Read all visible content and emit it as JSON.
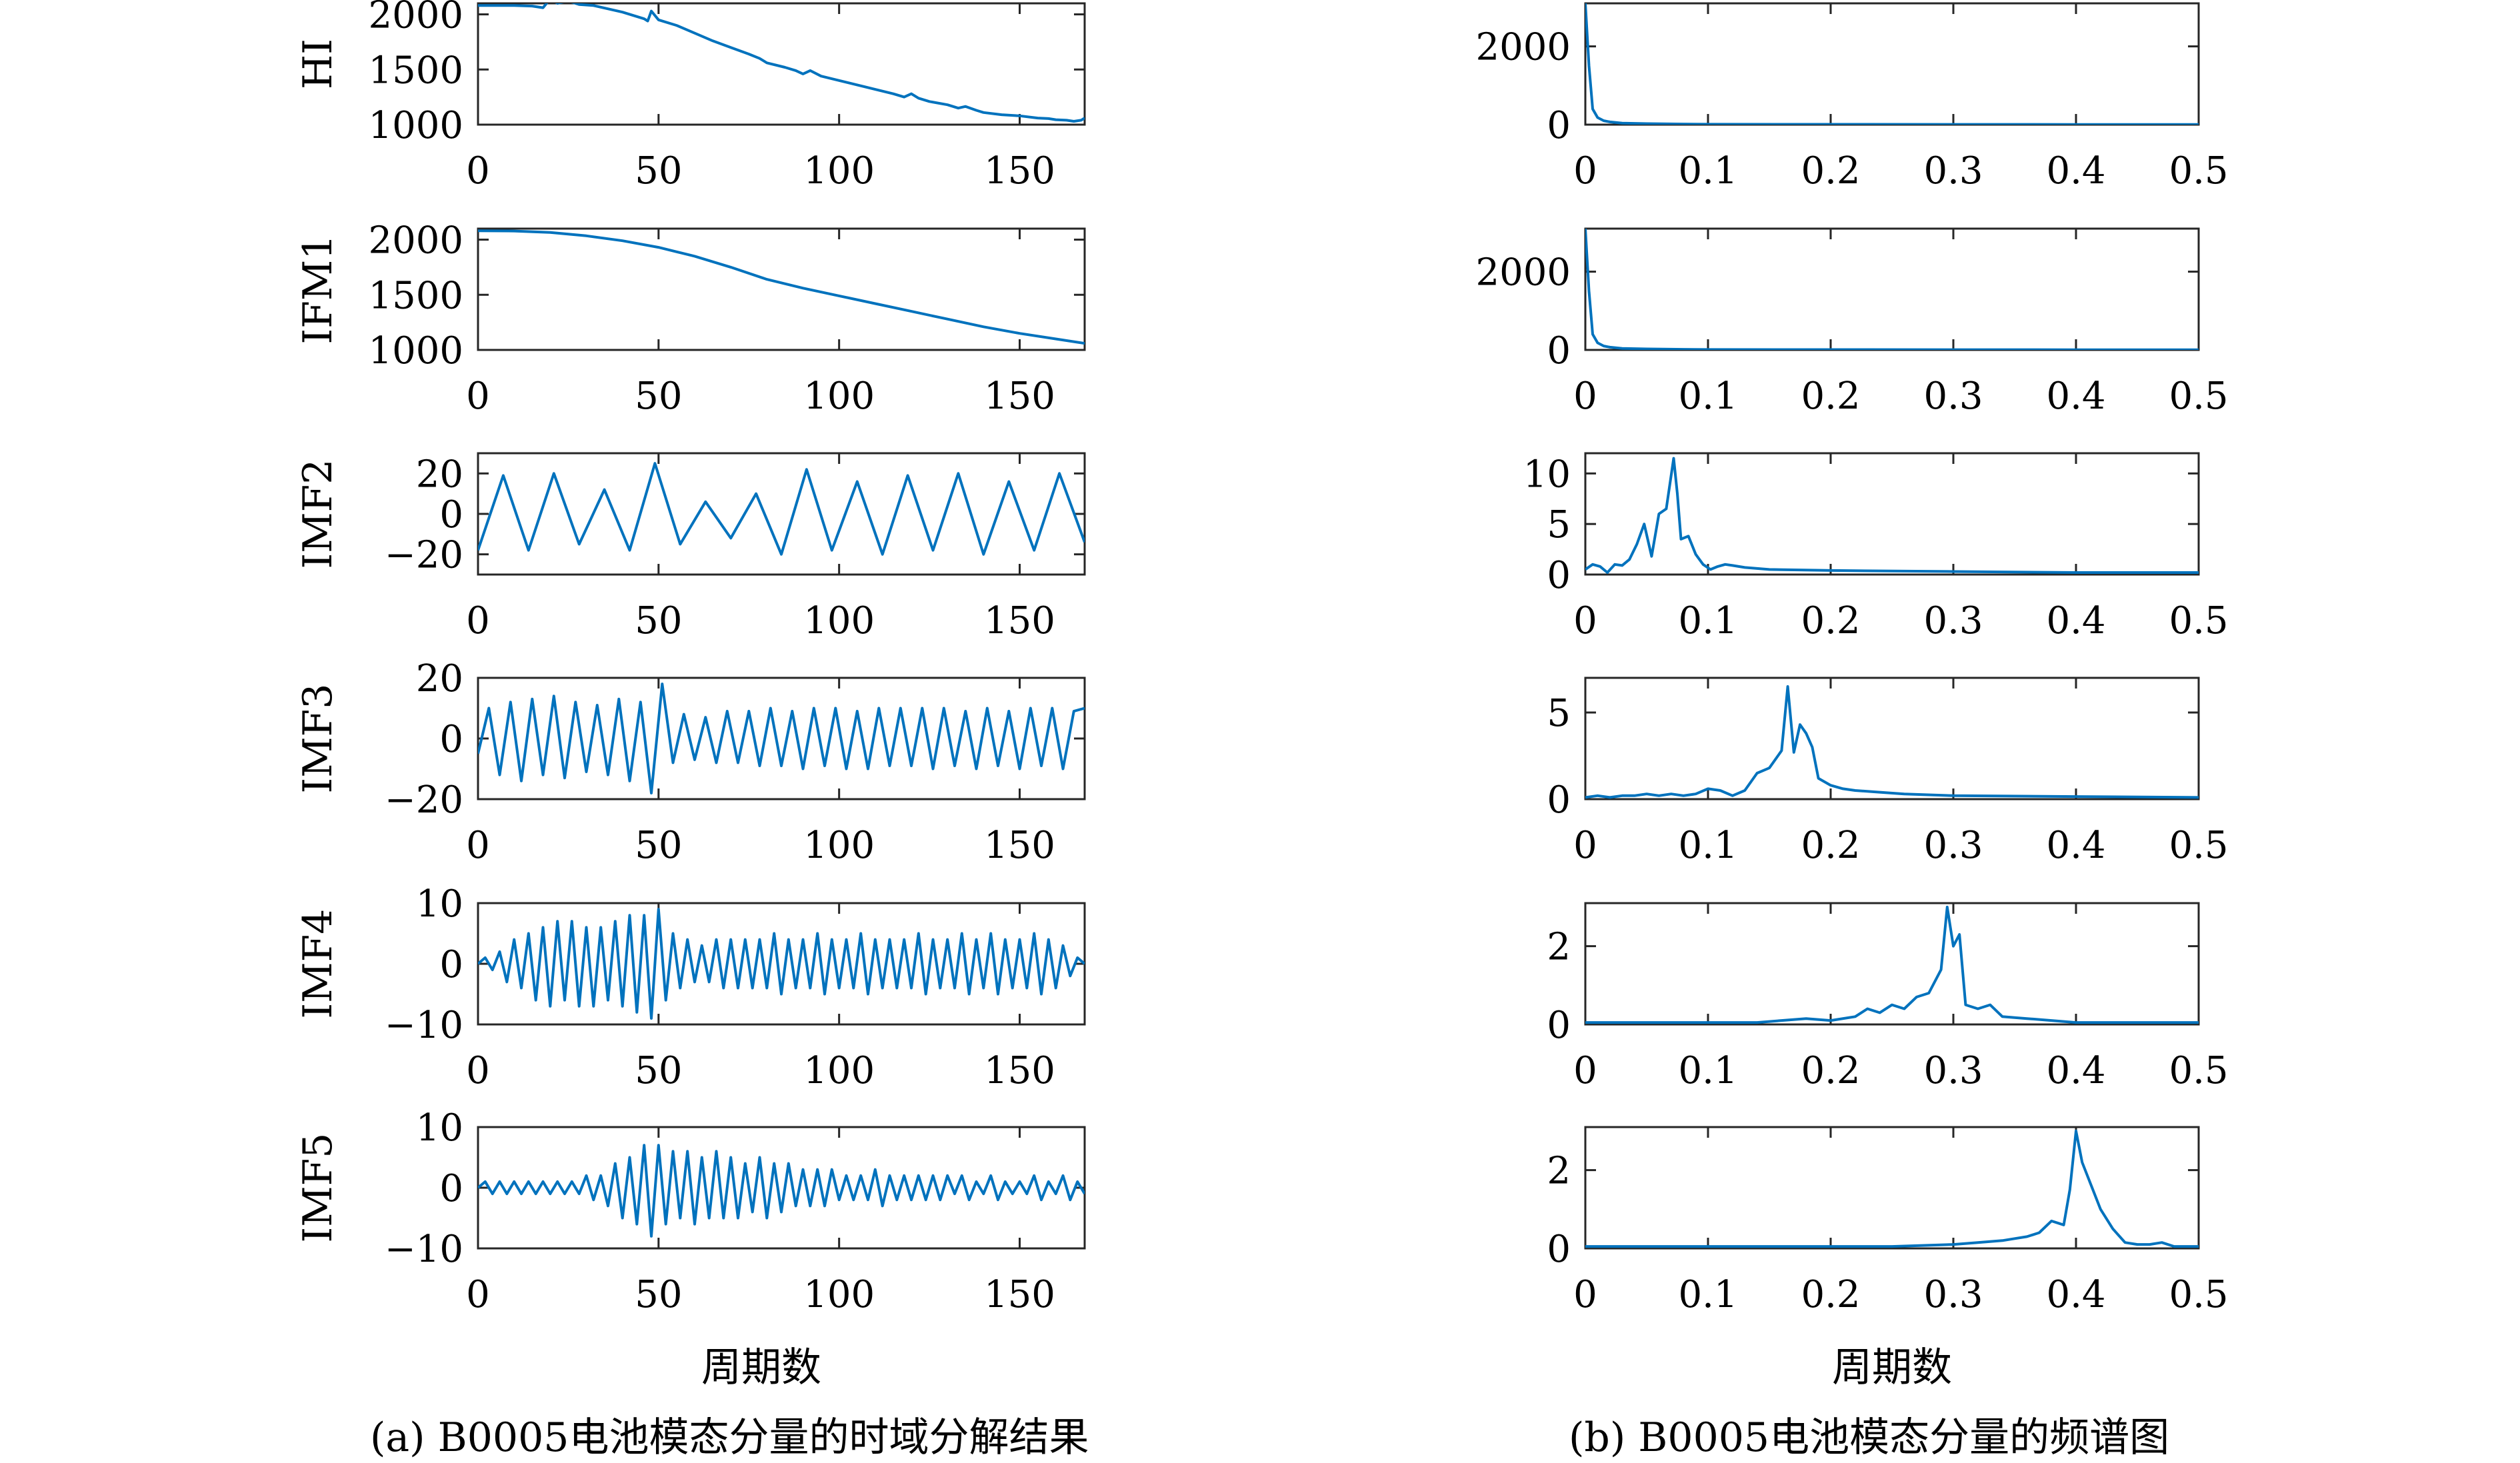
{
  "figure": {
    "left_xlabel": "周期数",
    "right_xlabel": "周期数",
    "caption_a": "(a) B0005电池模态分量的时域分解结果",
    "caption_b": "(b) B0005电池模态分量的频谱图"
  },
  "chart_data": [
    {
      "type": "line",
      "panel": "time",
      "ylabel": "HI",
      "xlim": [
        0,
        168
      ],
      "ylim": [
        1000,
        2100
      ],
      "xticks": [
        "0",
        "50",
        "100",
        "150"
      ],
      "yticks": [
        "1000",
        "1500",
        "2000"
      ],
      "color": "#0072BD",
      "x": [
        0,
        10,
        15,
        18,
        20,
        22,
        25,
        28,
        32,
        40,
        46,
        47,
        48,
        50,
        55,
        60,
        65,
        70,
        75,
        78,
        80,
        85,
        88,
        90,
        92,
        95,
        100,
        105,
        110,
        115,
        118,
        120,
        122,
        125,
        130,
        133,
        135,
        138,
        140,
        145,
        150,
        155,
        158,
        160,
        163,
        165,
        167,
        168
      ],
      "y": [
        2080,
        2080,
        2075,
        2060,
        2140,
        2100,
        2120,
        2090,
        2080,
        2020,
        1960,
        1940,
        2030,
        1950,
        1900,
        1830,
        1760,
        1700,
        1640,
        1600,
        1560,
        1520,
        1490,
        1460,
        1490,
        1440,
        1400,
        1360,
        1320,
        1280,
        1250,
        1280,
        1240,
        1210,
        1180,
        1150,
        1165,
        1130,
        1110,
        1090,
        1080,
        1060,
        1055,
        1045,
        1040,
        1030,
        1040,
        1060
      ]
    },
    {
      "type": "line",
      "panel": "time",
      "ylabel": "IFM1",
      "xlim": [
        0,
        168
      ],
      "ylim": [
        1000,
        2100
      ],
      "xticks": [
        "0",
        "50",
        "100",
        "150"
      ],
      "yticks": [
        "1000",
        "1500",
        "2000"
      ],
      "color": "#0072BD",
      "x": [
        0,
        10,
        20,
        30,
        40,
        50,
        60,
        70,
        80,
        90,
        100,
        110,
        120,
        130,
        140,
        150,
        160,
        168
      ],
      "y": [
        2080,
        2078,
        2065,
        2035,
        1990,
        1930,
        1850,
        1750,
        1640,
        1560,
        1490,
        1420,
        1350,
        1280,
        1210,
        1150,
        1100,
        1060
      ]
    },
    {
      "type": "line",
      "panel": "time",
      "ylabel": "IMF2",
      "xlim": [
        0,
        168
      ],
      "ylim": [
        -30,
        30
      ],
      "xticks": [
        "0",
        "50",
        "100",
        "150"
      ],
      "yticks": [
        "−20",
        "0",
        "20"
      ],
      "color": "#0072BD",
      "x": [
        0,
        7,
        14,
        21,
        28,
        35,
        42,
        49,
        56,
        63,
        70,
        77,
        84,
        91,
        98,
        105,
        112,
        119,
        126,
        133,
        140,
        147,
        154,
        161,
        168
      ],
      "y": [
        -18,
        19,
        -18,
        20,
        -15,
        12,
        -18,
        25,
        -15,
        6,
        -12,
        10,
        -20,
        22,
        -18,
        16,
        -20,
        19,
        -18,
        20,
        -20,
        16,
        -18,
        20,
        -14
      ]
    },
    {
      "type": "line",
      "panel": "time",
      "ylabel": "IMF3",
      "xlim": [
        0,
        168
      ],
      "ylim": [
        -20,
        20
      ],
      "xticks": [
        "0",
        "50",
        "100",
        "150"
      ],
      "yticks": [
        "−20",
        "0",
        "20"
      ],
      "color": "#0072BD",
      "x": [
        0,
        3,
        6,
        9,
        12,
        15,
        18,
        21,
        24,
        27,
        30,
        33,
        36,
        39,
        42,
        45,
        48,
        51,
        54,
        57,
        60,
        63,
        66,
        69,
        72,
        75,
        78,
        81,
        84,
        87,
        90,
        93,
        96,
        99,
        102,
        105,
        108,
        111,
        114,
        117,
        120,
        123,
        126,
        129,
        132,
        135,
        138,
        141,
        144,
        147,
        150,
        153,
        156,
        159,
        162,
        165,
        168
      ],
      "y": [
        -5,
        10,
        -12,
        12,
        -14,
        13,
        -12,
        14,
        -13,
        12,
        -11,
        11,
        -12,
        13,
        -14,
        12,
        -18,
        18,
        -8,
        8,
        -7,
        7,
        -8,
        9,
        -8,
        9,
        -9,
        10,
        -9,
        9,
        -10,
        10,
        -9,
        10,
        -10,
        9,
        -10,
        10,
        -9,
        10,
        -9,
        10,
        -10,
        10,
        -9,
        9,
        -10,
        10,
        -9,
        9,
        -10,
        10,
        -9,
        10,
        -10,
        9,
        10
      ]
    },
    {
      "type": "line",
      "panel": "time",
      "ylabel": "IMF4",
      "xlim": [
        0,
        168
      ],
      "ylim": [
        -10,
        10
      ],
      "xticks": [
        "0",
        "50",
        "100",
        "150"
      ],
      "yticks": [
        "−10",
        "0",
        "10"
      ],
      "color": "#0072BD",
      "x": [
        0,
        2,
        4,
        6,
        8,
        10,
        12,
        14,
        16,
        18,
        20,
        22,
        24,
        26,
        28,
        30,
        32,
        34,
        36,
        38,
        40,
        42,
        44,
        46,
        48,
        50,
        52,
        54,
        56,
        58,
        60,
        62,
        64,
        66,
        68,
        70,
        72,
        74,
        76,
        78,
        80,
        82,
        84,
        86,
        88,
        90,
        92,
        94,
        96,
        98,
        100,
        102,
        104,
        106,
        108,
        110,
        112,
        114,
        116,
        118,
        120,
        122,
        124,
        126,
        128,
        130,
        132,
        134,
        136,
        138,
        140,
        142,
        144,
        146,
        148,
        150,
        152,
        154,
        156,
        158,
        160,
        162,
        164,
        166,
        168
      ],
      "y": [
        0,
        1,
        -1,
        2,
        -3,
        4,
        -4,
        5,
        -6,
        6,
        -7,
        7,
        -6,
        7,
        -7,
        6,
        -7,
        6,
        -6,
        7,
        -7,
        8,
        -8,
        8,
        -9,
        9,
        -6,
        5,
        -4,
        4,
        -3,
        3,
        -3,
        4,
        -4,
        4,
        -4,
        4,
        -4,
        4,
        -4,
        5,
        -5,
        4,
        -4,
        4,
        -4,
        5,
        -5,
        4,
        -4,
        4,
        -4,
        5,
        -5,
        4,
        -4,
        4,
        -4,
        4,
        -4,
        5,
        -5,
        4,
        -4,
        4,
        -4,
        5,
        -5,
        4,
        -4,
        5,
        -5,
        4,
        -4,
        4,
        -4,
        5,
        -5,
        4,
        -4,
        3,
        -2,
        1,
        0
      ]
    },
    {
      "type": "line",
      "panel": "time",
      "ylabel": "IMF5",
      "xlim": [
        0,
        168
      ],
      "ylim": [
        -10,
        10
      ],
      "xticks": [
        "0",
        "50",
        "100",
        "150"
      ],
      "yticks": [
        "−10",
        "0",
        "10"
      ],
      "color": "#0072BD",
      "x": [
        0,
        2,
        4,
        6,
        8,
        10,
        12,
        14,
        16,
        18,
        20,
        22,
        24,
        26,
        28,
        30,
        32,
        34,
        36,
        38,
        40,
        42,
        44,
        46,
        48,
        50,
        52,
        54,
        56,
        58,
        60,
        62,
        64,
        66,
        68,
        70,
        72,
        74,
        76,
        78,
        80,
        82,
        84,
        86,
        88,
        90,
        92,
        94,
        96,
        98,
        100,
        102,
        104,
        106,
        108,
        110,
        112,
        114,
        116,
        118,
        120,
        122,
        124,
        126,
        128,
        130,
        132,
        134,
        136,
        138,
        140,
        142,
        144,
        146,
        148,
        150,
        152,
        154,
        156,
        158,
        160,
        162,
        164,
        166,
        168
      ],
      "y": [
        0,
        1,
        -1,
        1,
        -1,
        1,
        -1,
        1,
        -1,
        1,
        -1,
        1,
        -1,
        1,
        -1,
        2,
        -2,
        2,
        -3,
        4,
        -5,
        5,
        -6,
        7,
        -8,
        7,
        -6,
        6,
        -5,
        6,
        -6,
        5,
        -5,
        6,
        -5,
        5,
        -5,
        4,
        -4,
        5,
        -5,
        4,
        -4,
        4,
        -3,
        3,
        -3,
        3,
        -3,
        3,
        -2,
        2,
        -2,
        2,
        -2,
        3,
        -3,
        2,
        -2,
        2,
        -2,
        2,
        -2,
        2,
        -2,
        2,
        -1,
        2,
        -2,
        1,
        -1,
        2,
        -2,
        1,
        -1,
        1,
        -1,
        2,
        -2,
        1,
        -1,
        2,
        -2,
        1,
        -1
      ]
    },
    {
      "type": "line",
      "panel": "spectrum",
      "ylabel": "",
      "xlim": [
        0,
        0.5
      ],
      "ylim": [
        0,
        3100
      ],
      "xticks": [
        "0",
        "0.1",
        "0.2",
        "0.3",
        "0.4",
        "0.5"
      ],
      "yticks": [
        "0",
        "2000"
      ],
      "color": "#0072BD",
      "x": [
        0,
        0.003,
        0.006,
        0.01,
        0.015,
        0.02,
        0.03,
        0.05,
        0.08,
        0.1,
        0.2,
        0.3,
        0.4,
        0.5
      ],
      "y": [
        3100,
        1500,
        400,
        180,
        100,
        70,
        40,
        25,
        15,
        10,
        8,
        6,
        5,
        5
      ]
    },
    {
      "type": "line",
      "panel": "spectrum",
      "ylabel": "",
      "xlim": [
        0,
        0.5
      ],
      "ylim": [
        0,
        3100
      ],
      "xticks": [
        "0",
        "0.1",
        "0.2",
        "0.3",
        "0.4",
        "0.5"
      ],
      "yticks": [
        "0",
        "2000"
      ],
      "color": "#0072BD",
      "x": [
        0,
        0.003,
        0.006,
        0.01,
        0.015,
        0.02,
        0.03,
        0.05,
        0.08,
        0.1,
        0.2,
        0.3,
        0.4,
        0.5
      ],
      "y": [
        3100,
        1500,
        400,
        180,
        100,
        70,
        40,
        25,
        15,
        10,
        8,
        6,
        5,
        5
      ]
    },
    {
      "type": "line",
      "panel": "spectrum",
      "ylabel": "",
      "xlim": [
        0,
        0.5
      ],
      "ylim": [
        0,
        12
      ],
      "xticks": [
        "0",
        "0.1",
        "0.2",
        "0.3",
        "0.4",
        "0.5"
      ],
      "yticks": [
        "0",
        "5",
        "10"
      ],
      "color": "#0072BD",
      "x": [
        0,
        0.006,
        0.012,
        0.018,
        0.024,
        0.03,
        0.036,
        0.042,
        0.048,
        0.054,
        0.06,
        0.066,
        0.072,
        0.075,
        0.078,
        0.084,
        0.09,
        0.096,
        0.102,
        0.108,
        0.114,
        0.12,
        0.13,
        0.15,
        0.2,
        0.3,
        0.4,
        0.5
      ],
      "y": [
        0.5,
        1,
        0.8,
        0.2,
        1,
        0.9,
        1.5,
        3,
        5,
        1.8,
        6,
        6.5,
        11.5,
        8,
        3.5,
        3.8,
        2,
        1,
        0.5,
        0.8,
        1,
        0.9,
        0.7,
        0.5,
        0.4,
        0.3,
        0.2,
        0.2
      ]
    },
    {
      "type": "line",
      "panel": "spectrum",
      "ylabel": "",
      "xlim": [
        0,
        0.5
      ],
      "ylim": [
        0,
        7
      ],
      "xticks": [
        "0",
        "0.1",
        "0.2",
        "0.3",
        "0.4",
        "0.5"
      ],
      "yticks": [
        "0",
        "5"
      ],
      "color": "#0072BD",
      "x": [
        0,
        0.01,
        0.02,
        0.03,
        0.04,
        0.05,
        0.06,
        0.07,
        0.08,
        0.09,
        0.1,
        0.11,
        0.12,
        0.13,
        0.14,
        0.15,
        0.16,
        0.165,
        0.17,
        0.175,
        0.18,
        0.185,
        0.19,
        0.2,
        0.21,
        0.22,
        0.24,
        0.26,
        0.3,
        0.4,
        0.5
      ],
      "y": [
        0.1,
        0.2,
        0.1,
        0.2,
        0.2,
        0.3,
        0.2,
        0.3,
        0.2,
        0.3,
        0.6,
        0.5,
        0.2,
        0.5,
        1.5,
        1.8,
        2.8,
        6.5,
        2.7,
        4.3,
        3.8,
        3,
        1.2,
        0.8,
        0.6,
        0.5,
        0.4,
        0.3,
        0.2,
        0.15,
        0.1
      ]
    },
    {
      "type": "line",
      "panel": "spectrum",
      "ylabel": "",
      "xlim": [
        0,
        0.5
      ],
      "ylim": [
        0,
        3.1
      ],
      "xticks": [
        "0",
        "0.1",
        "0.2",
        "0.3",
        "0.4",
        "0.5"
      ],
      "yticks": [
        "0",
        "2"
      ],
      "color": "#0072BD",
      "x": [
        0,
        0.02,
        0.04,
        0.06,
        0.08,
        0.1,
        0.12,
        0.14,
        0.16,
        0.18,
        0.2,
        0.22,
        0.23,
        0.24,
        0.25,
        0.26,
        0.27,
        0.28,
        0.29,
        0.295,
        0.3,
        0.305,
        0.31,
        0.32,
        0.33,
        0.34,
        0.36,
        0.38,
        0.4,
        0.45,
        0.5
      ],
      "y": [
        0.05,
        0.05,
        0.05,
        0.05,
        0.05,
        0.05,
        0.05,
        0.05,
        0.1,
        0.15,
        0.1,
        0.2,
        0.4,
        0.3,
        0.5,
        0.4,
        0.7,
        0.8,
        1.4,
        3,
        2,
        2.3,
        0.5,
        0.4,
        0.5,
        0.2,
        0.15,
        0.1,
        0.05,
        0.05,
        0.05
      ]
    },
    {
      "type": "line",
      "panel": "spectrum",
      "ylabel": "",
      "xlim": [
        0,
        0.5
      ],
      "ylim": [
        0,
        3.1
      ],
      "xticks": [
        "0",
        "0.1",
        "0.2",
        "0.3",
        "0.4",
        "0.5"
      ],
      "yticks": [
        "0",
        "2"
      ],
      "color": "#0072BD",
      "x": [
        0,
        0.05,
        0.1,
        0.15,
        0.2,
        0.25,
        0.3,
        0.32,
        0.34,
        0.35,
        0.36,
        0.37,
        0.38,
        0.39,
        0.395,
        0.4,
        0.405,
        0.41,
        0.42,
        0.43,
        0.44,
        0.45,
        0.46,
        0.47,
        0.48,
        0.5
      ],
      "y": [
        0.05,
        0.05,
        0.05,
        0.05,
        0.05,
        0.05,
        0.1,
        0.15,
        0.2,
        0.25,
        0.3,
        0.4,
        0.7,
        0.6,
        1.5,
        3,
        2.2,
        1.8,
        1,
        0.5,
        0.15,
        0.1,
        0.1,
        0.15,
        0.05,
        0.05
      ]
    }
  ]
}
